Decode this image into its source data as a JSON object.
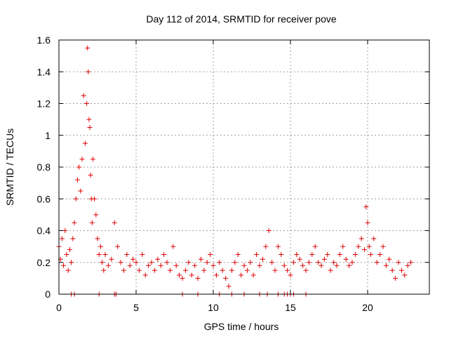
{
  "chart_data": {
    "type": "scatter",
    "title": "Day 112 of 2014, SRMTID for receiver pove",
    "xlabel": "GPS time / hours",
    "ylabel": "SRMTID / TECUs",
    "xlim": [
      0,
      24
    ],
    "ylim": [
      0,
      1.6
    ],
    "x_ticks": [
      0,
      5,
      10,
      15,
      20
    ],
    "x_tick_labels": [
      "0",
      "5",
      "10",
      "15",
      "20"
    ],
    "y_ticks": [
      0,
      0.2,
      0.4,
      0.6,
      0.8,
      1.0,
      1.2,
      1.4,
      1.6
    ],
    "y_tick_labels": [
      "0",
      "0.2",
      "0.4",
      "0.6",
      "0.8",
      "1",
      "1.2",
      "1.4",
      "1.6"
    ],
    "grid": true,
    "legend": "none",
    "marker": "plus",
    "color": "#e00000",
    "series": [
      {
        "x": [
          0.0,
          0.1,
          0.2,
          0.3,
          0.4,
          0.5,
          0.6,
          0.7,
          0.8,
          0.9,
          1.0,
          1.1,
          1.2,
          1.3,
          1.4,
          1.5,
          1.6,
          1.7,
          1.8,
          1.85,
          1.9,
          1.95,
          2.0,
          2.05,
          2.1,
          2.15,
          2.2,
          2.3,
          2.4,
          2.5,
          2.6,
          2.7,
          2.8,
          2.9,
          3.0,
          3.2,
          3.4,
          3.6,
          3.8,
          4.0,
          4.2,
          4.4,
          4.6,
          4.8,
          5.0,
          5.2,
          5.4,
          5.6,
          5.8,
          6.0,
          6.2,
          6.4,
          6.6,
          6.8,
          7.0,
          7.2,
          7.4,
          7.6,
          7.8,
          8.0,
          8.2,
          8.4,
          8.6,
          8.8,
          9.0,
          9.2,
          9.4,
          9.6,
          9.8,
          10.0,
          10.2,
          10.4,
          10.6,
          10.8,
          11.0,
          11.2,
          11.4,
          11.6,
          11.8,
          12.0,
          12.2,
          12.4,
          12.6,
          12.8,
          13.0,
          13.2,
          13.4,
          13.6,
          13.8,
          14.0,
          14.2,
          14.4,
          14.6,
          14.8,
          15.0,
          15.2,
          15.4,
          15.6,
          15.8,
          16.0,
          16.2,
          16.4,
          16.6,
          16.8,
          17.0,
          17.2,
          17.4,
          17.6,
          17.8,
          18.0,
          18.2,
          18.4,
          18.6,
          18.8,
          19.0,
          19.2,
          19.4,
          19.6,
          19.8,
          19.9,
          20.0,
          20.1,
          20.2,
          20.4,
          20.6,
          20.8,
          21.0,
          21.2,
          21.4,
          21.6,
          21.8,
          22.0,
          22.2,
          22.4,
          22.6,
          22.8
        ],
        "y": [
          0.3,
          0.22,
          0.35,
          0.18,
          0.4,
          0.25,
          0.15,
          0.28,
          0.2,
          0.35,
          0.45,
          0.6,
          0.72,
          0.8,
          0.65,
          0.85,
          1.25,
          0.95,
          1.2,
          1.55,
          1.4,
          1.1,
          1.05,
          0.75,
          0.6,
          0.45,
          0.85,
          0.6,
          0.5,
          0.35,
          0.25,
          0.3,
          0.2,
          0.15,
          0.25,
          0.18,
          0.22,
          0.45,
          0.3,
          0.2,
          0.15,
          0.25,
          0.18,
          0.22,
          0.2,
          0.15,
          0.25,
          0.12,
          0.18,
          0.2,
          0.15,
          0.22,
          0.18,
          0.25,
          0.2,
          0.15,
          0.3,
          0.18,
          0.12,
          0.1,
          0.15,
          0.2,
          0.12,
          0.18,
          0.1,
          0.22,
          0.15,
          0.2,
          0.25,
          0.18,
          0.12,
          0.2,
          0.15,
          0.1,
          0.05,
          0.15,
          0.2,
          0.25,
          0.12,
          0.18,
          0.15,
          0.2,
          0.12,
          0.25,
          0.18,
          0.22,
          0.3,
          0.4,
          0.2,
          0.15,
          0.3,
          0.25,
          0.18,
          0.15,
          0.12,
          0.2,
          0.25,
          0.22,
          0.18,
          0.15,
          0.2,
          0.25,
          0.3,
          0.2,
          0.18,
          0.22,
          0.25,
          0.15,
          0.2,
          0.18,
          0.25,
          0.3,
          0.22,
          0.18,
          0.2,
          0.25,
          0.3,
          0.35,
          0.28,
          0.55,
          0.45,
          0.3,
          0.25,
          0.35,
          0.2,
          0.25,
          0.3,
          0.18,
          0.22,
          0.15,
          0.1,
          0.2,
          0.15,
          0.12,
          0.18,
          0.2
        ]
      },
      {
        "x": [
          0.8,
          1.0,
          2.6,
          3.6,
          3.7,
          8.0,
          9.0,
          10.4,
          11.2,
          12.0,
          13.0,
          13.5,
          14.2,
          14.6,
          14.8,
          15.0,
          15.2,
          16.0
        ],
        "y": [
          0,
          0,
          0,
          0,
          0,
          0,
          0,
          0,
          0,
          0,
          0,
          0,
          0,
          0,
          0,
          0,
          0,
          0
        ]
      }
    ]
  }
}
